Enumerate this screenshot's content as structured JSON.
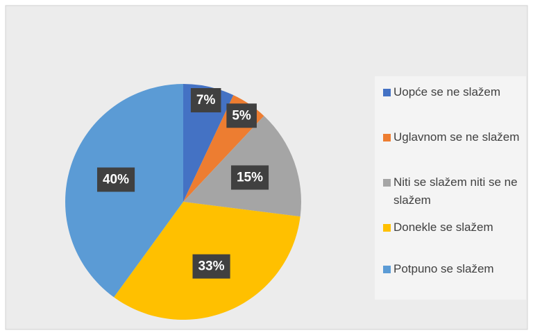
{
  "chart_data": {
    "type": "pie",
    "categories": [
      "Uopće se ne slažem",
      "Uglavnom se ne slažem",
      "Niti se slažem niti se ne slažem",
      "Donekle se slažem",
      "Potpuno se slažem"
    ],
    "values": [
      7,
      5,
      15,
      33,
      40
    ],
    "value_labels": [
      "7%",
      "5%",
      "15%",
      "33%",
      "40%"
    ],
    "colors": [
      "#4472c4",
      "#ed7d31",
      "#a5a5a5",
      "#ffc000",
      "#5b9bd5"
    ],
    "legend": "right"
  }
}
